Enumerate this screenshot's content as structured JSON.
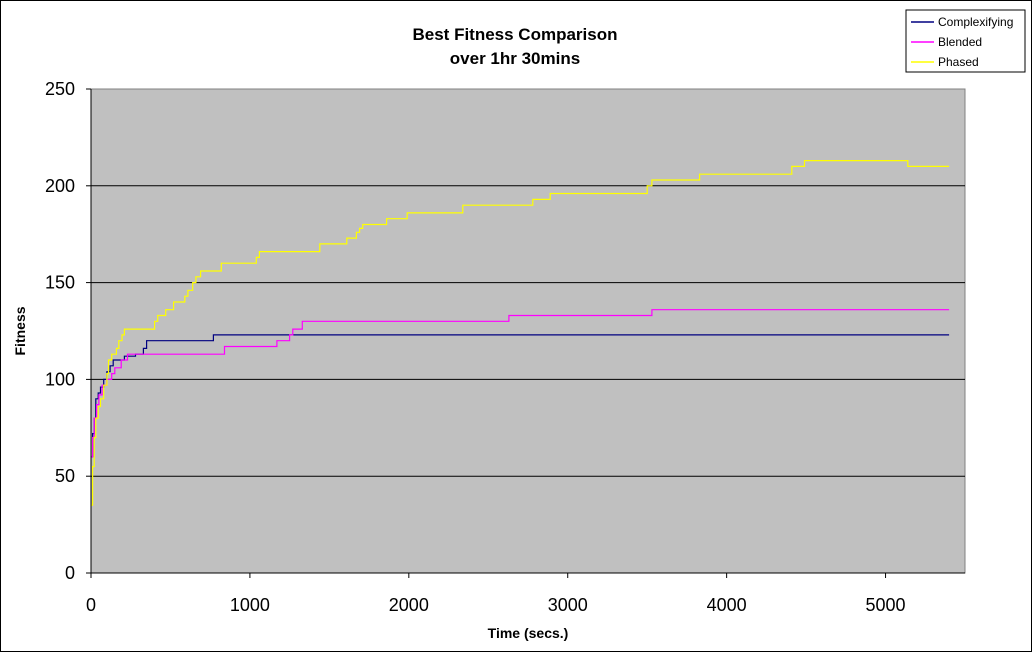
{
  "chart_data": {
    "type": "line",
    "title": "Best Fitness Comparison",
    "subtitle": "over 1hr 30mins",
    "xlabel": "Time (secs.)",
    "ylabel": "Fitness",
    "xlim": [
      0,
      5500
    ],
    "ylim": [
      0,
      250
    ],
    "x_ticks": [
      0,
      1000,
      2000,
      3000,
      4000,
      5000
    ],
    "y_ticks": [
      0,
      50,
      100,
      150,
      200,
      250
    ],
    "grid": "horizontal",
    "legend_position": "top-right",
    "plot_background": "#c0c0c0",
    "series": [
      {
        "name": "Complexifying",
        "color": "#000080",
        "step": true,
        "points": [
          [
            0,
            60
          ],
          [
            10,
            72
          ],
          [
            20,
            80
          ],
          [
            30,
            90
          ],
          [
            45,
            93
          ],
          [
            60,
            96
          ],
          [
            80,
            100
          ],
          [
            100,
            104
          ],
          [
            120,
            107
          ],
          [
            140,
            110
          ],
          [
            200,
            110
          ],
          [
            210,
            112
          ],
          [
            280,
            113
          ],
          [
            330,
            116
          ],
          [
            350,
            120
          ],
          [
            760,
            120
          ],
          [
            770,
            123
          ],
          [
            5400,
            123
          ]
        ]
      },
      {
        "name": "Blended",
        "color": "#ff00ff",
        "step": true,
        "points": [
          [
            0,
            60
          ],
          [
            10,
            70
          ],
          [
            20,
            80
          ],
          [
            35,
            87
          ],
          [
            50,
            92
          ],
          [
            70,
            97
          ],
          [
            100,
            100
          ],
          [
            130,
            103
          ],
          [
            150,
            106
          ],
          [
            190,
            110
          ],
          [
            230,
            113
          ],
          [
            830,
            113
          ],
          [
            840,
            117
          ],
          [
            1160,
            117
          ],
          [
            1170,
            120
          ],
          [
            1240,
            120
          ],
          [
            1250,
            123
          ],
          [
            1270,
            126
          ],
          [
            1330,
            130
          ],
          [
            2620,
            130
          ],
          [
            2630,
            133
          ],
          [
            3520,
            133
          ],
          [
            3530,
            136
          ],
          [
            5400,
            136
          ]
        ]
      },
      {
        "name": "Phased",
        "color": "#ffff00",
        "step": true,
        "points": [
          [
            0,
            35
          ],
          [
            10,
            55
          ],
          [
            20,
            70
          ],
          [
            30,
            80
          ],
          [
            45,
            86
          ],
          [
            60,
            90
          ],
          [
            80,
            97
          ],
          [
            100,
            103
          ],
          [
            110,
            110
          ],
          [
            130,
            113
          ],
          [
            160,
            116
          ],
          [
            175,
            120
          ],
          [
            195,
            123
          ],
          [
            210,
            126
          ],
          [
            390,
            126
          ],
          [
            400,
            130
          ],
          [
            420,
            133
          ],
          [
            470,
            136
          ],
          [
            520,
            140
          ],
          [
            590,
            143
          ],
          [
            610,
            146
          ],
          [
            640,
            150
          ],
          [
            660,
            153
          ],
          [
            690,
            156
          ],
          [
            810,
            156
          ],
          [
            820,
            160
          ],
          [
            1030,
            160
          ],
          [
            1040,
            163
          ],
          [
            1060,
            166
          ],
          [
            1430,
            166
          ],
          [
            1440,
            170
          ],
          [
            1600,
            170
          ],
          [
            1610,
            173
          ],
          [
            1670,
            176
          ],
          [
            1690,
            178
          ],
          [
            1710,
            180
          ],
          [
            1850,
            180
          ],
          [
            1860,
            183
          ],
          [
            1980,
            183
          ],
          [
            1990,
            186
          ],
          [
            2330,
            186
          ],
          [
            2340,
            190
          ],
          [
            2770,
            190
          ],
          [
            2780,
            193
          ],
          [
            2880,
            193
          ],
          [
            2890,
            196
          ],
          [
            3490,
            196
          ],
          [
            3500,
            200
          ],
          [
            3530,
            203
          ],
          [
            3820,
            203
          ],
          [
            3830,
            206
          ],
          [
            4400,
            206
          ],
          [
            4410,
            210
          ],
          [
            4480,
            210
          ],
          [
            4490,
            213
          ],
          [
            5130,
            213
          ],
          [
            5140,
            210
          ],
          [
            5400,
            210
          ]
        ]
      }
    ]
  }
}
